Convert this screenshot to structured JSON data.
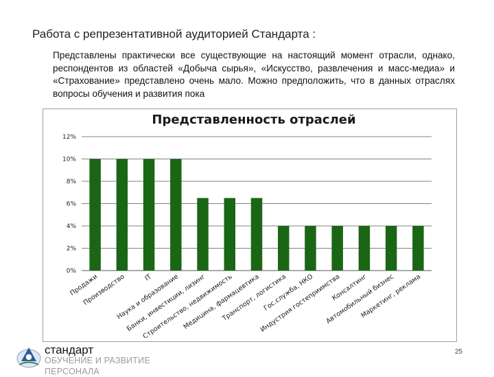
{
  "slide": {
    "title": "Работа с репрезентативной аудиторией Стандарта :",
    "intro": "Представлены практически все существующие на настоящий момент отрасли, однако, респондентов из областей «Добыча сырья», «Искусство, развлечения и масс-медиа» и «Страхование» представлено очень мало. Можно предположить, что в данных отраслях вопросы обучения и развития пока",
    "page_number": "25"
  },
  "brand": {
    "name": "стандарт",
    "tagline": "ОБУЧЕНИЕ И РАЗВИТИЕ ПЕРСОНАЛА"
  },
  "colors": {
    "bar": "#1a6614",
    "grid": "#808080",
    "text": "#1a1a1a"
  },
  "chart_data": {
    "type": "bar",
    "title": "Представленность отраслей",
    "categories": [
      "Продажи",
      "Производство",
      "IT",
      "Наука и образование",
      "Банки, инвестиции, лизинг",
      "Строительство, недвижимость",
      "Медицина, фармацевтика",
      "Транспорт, логистика",
      "Гос.служба, НКО",
      "Индустрия гостеприимства",
      "Консалтинг",
      "Автомобильный бизнес",
      "Маркетинг, реклама"
    ],
    "values": [
      10,
      10,
      10,
      10,
      6.5,
      6.5,
      6.5,
      4,
      4,
      4,
      4,
      4,
      4
    ],
    "ylim": [
      0,
      12
    ],
    "yticks": [
      0,
      2,
      4,
      6,
      8,
      10,
      12
    ],
    "ytick_labels": [
      "0%",
      "2%",
      "4%",
      "6%",
      "8%",
      "10%",
      "12%"
    ],
    "xlabel": "",
    "ylabel": "",
    "grid": true,
    "legend": "none"
  }
}
